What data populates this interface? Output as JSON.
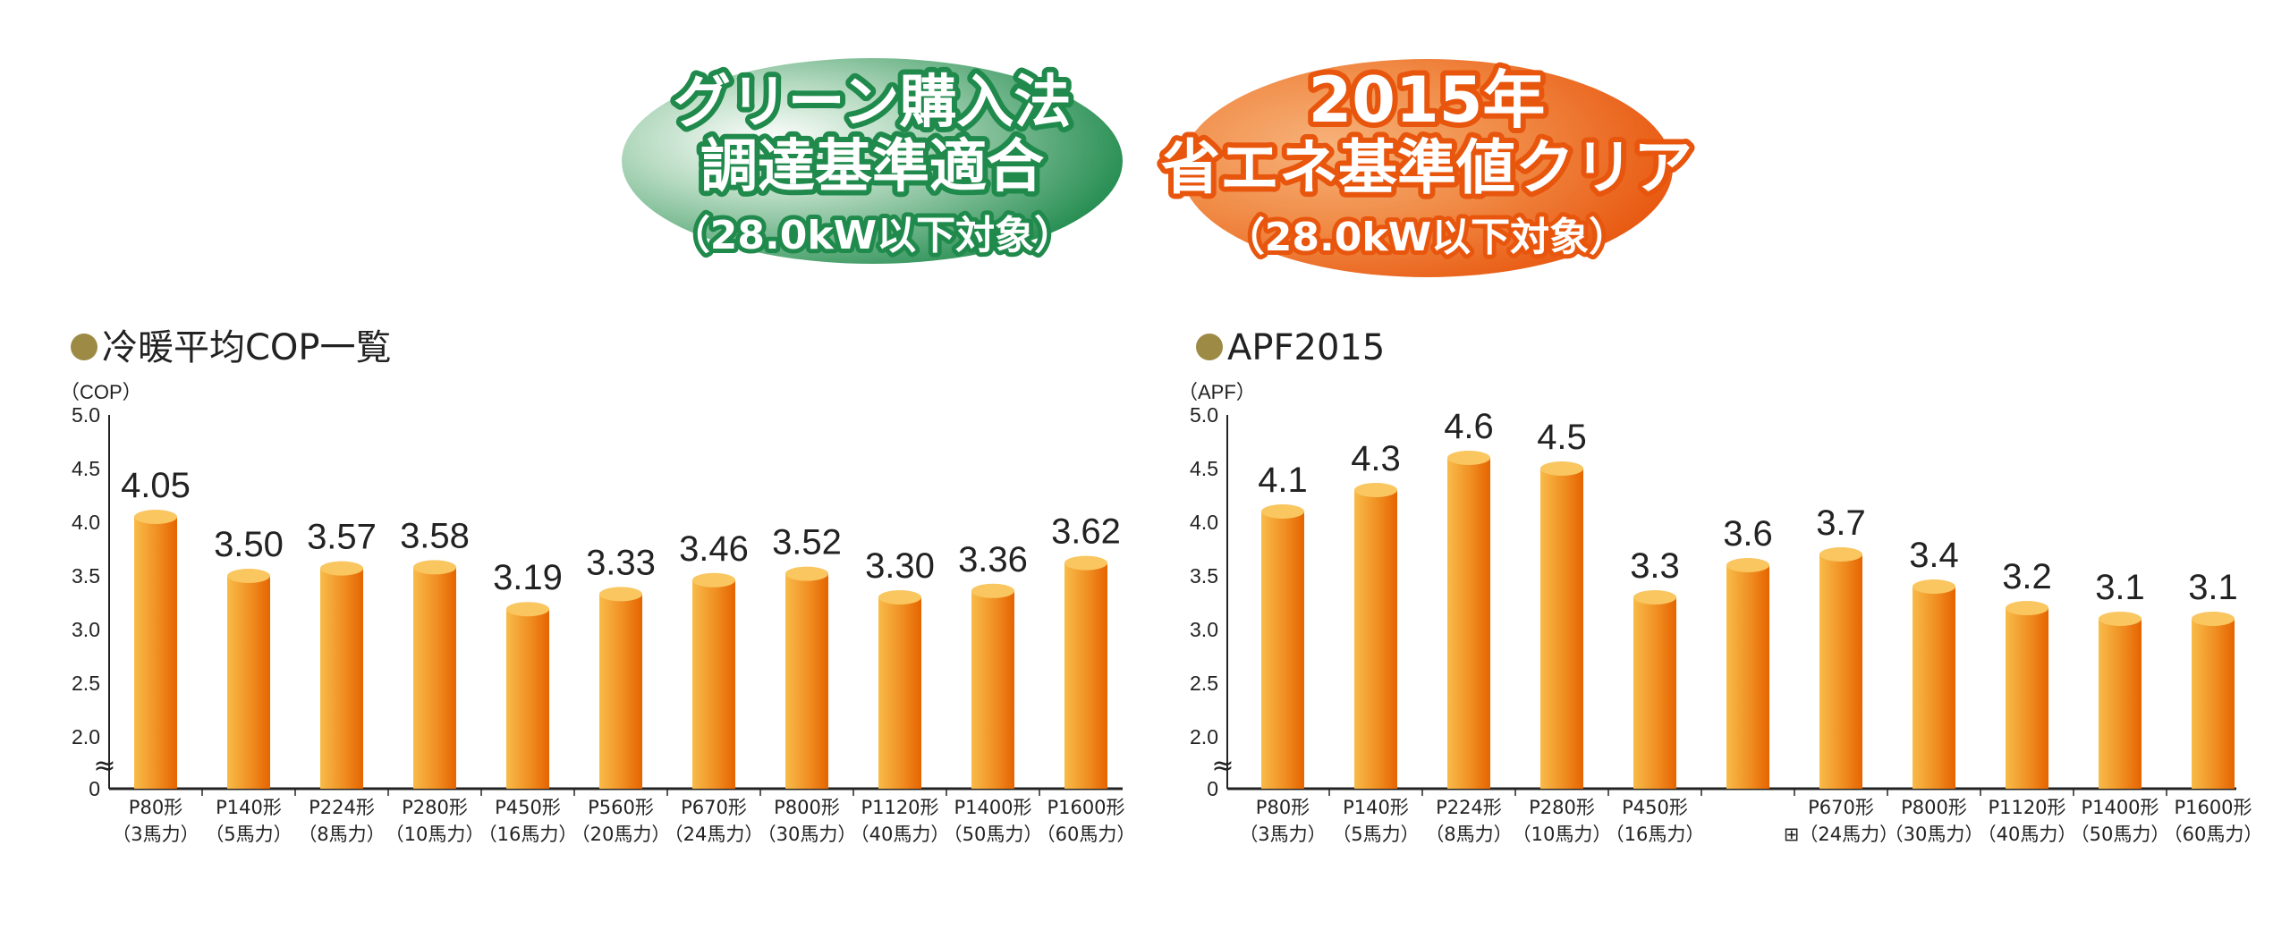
{
  "badges": {
    "green": {
      "lines": [
        "グリーン購入法",
        "調達基準適合",
        "（28.0kW以下対象）"
      ],
      "color": "#1f8a4c"
    },
    "orange": {
      "lines": [
        "2015年",
        "省エネ基準値クリア",
        "（28.0kW以下対象）"
      ],
      "color": "#e8560e"
    }
  },
  "colors": {
    "bullet": "#9c8a45",
    "bar_light": "#f8bb48",
    "bar_dark": "#e56400",
    "bar_top": "#f9c660"
  },
  "chart_data": [
    {
      "type": "bar",
      "title": "冷暖平均COP一覧",
      "ylabel": "（COP）",
      "ylim": [
        0,
        5.0
      ],
      "axis_break": [
        0,
        2.0
      ],
      "yticks": [
        "5.0",
        "4.5",
        "4.0",
        "3.5",
        "3.0",
        "2.5",
        "2.0",
        "0"
      ],
      "categories": [
        [
          "P80形",
          "（3馬力）"
        ],
        [
          "P140形",
          "（5馬力）"
        ],
        [
          "P224形",
          "（8馬力）"
        ],
        [
          "P280形",
          "（10馬力）"
        ],
        [
          "P450形",
          "（16馬力）"
        ],
        [
          "P560形",
          "（20馬力）"
        ],
        [
          "P670形",
          "（24馬力）"
        ],
        [
          "P800形",
          "（30馬力）"
        ],
        [
          "P1120形",
          "（40馬力）"
        ],
        [
          "P1400形",
          "（50馬力）"
        ],
        [
          "P1600形",
          "（60馬力）"
        ]
      ],
      "values": [
        4.05,
        3.5,
        3.57,
        3.58,
        3.19,
        3.33,
        3.46,
        3.52,
        3.3,
        3.36,
        3.62
      ],
      "value_labels": [
        "4.05",
        "3.50",
        "3.57",
        "3.58",
        "3.19",
        "3.33",
        "3.46",
        "3.52",
        "3.30",
        "3.36",
        "3.62"
      ]
    },
    {
      "type": "bar",
      "title": "APF2015",
      "ylabel": "（APF）",
      "ylim": [
        0,
        5.0
      ],
      "axis_break": [
        0,
        2.0
      ],
      "yticks": [
        "5.0",
        "4.5",
        "4.0",
        "3.5",
        "3.0",
        "2.5",
        "2.0",
        "0"
      ],
      "categories": [
        [
          "P80形",
          "（3馬力）"
        ],
        [
          "P140形",
          "（5馬力）"
        ],
        [
          "P224形",
          "（8馬力）"
        ],
        [
          "P280形",
          "（10馬力）"
        ],
        [
          "P450形",
          "（16馬力）"
        ],
        [
          "",
          ""
        ],
        [
          "P670形",
          "⊞（24馬力）"
        ],
        [
          "P800形",
          "（30馬力）"
        ],
        [
          "P1120形",
          "（40馬力）"
        ],
        [
          "P1400形",
          "（50馬力）"
        ],
        [
          "P1600形",
          "（60馬力）"
        ]
      ],
      "values": [
        4.1,
        4.3,
        4.6,
        4.5,
        3.3,
        3.6,
        3.7,
        3.4,
        3.2,
        3.1,
        3.1
      ],
      "value_labels": [
        "4.1",
        "4.3",
        "4.6",
        "4.5",
        "3.3",
        "3.6",
        "3.7",
        "3.4",
        "3.2",
        "3.1",
        "3.1"
      ]
    }
  ]
}
